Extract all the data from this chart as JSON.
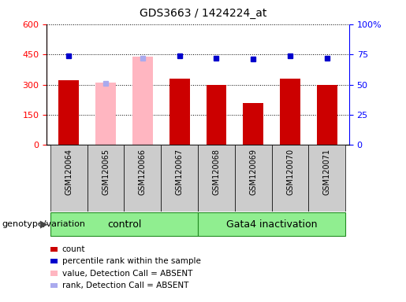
{
  "title": "GDS3663 / 1424224_at",
  "samples": [
    "GSM120064",
    "GSM120065",
    "GSM120066",
    "GSM120067",
    "GSM120068",
    "GSM120069",
    "GSM120070",
    "GSM120071"
  ],
  "count_values": [
    320,
    0,
    0,
    330,
    300,
    210,
    330,
    300
  ],
  "count_absent_values": [
    0,
    310,
    440,
    0,
    0,
    0,
    0,
    0
  ],
  "percentile_values": [
    74,
    0,
    0,
    74,
    72,
    71,
    74,
    72
  ],
  "percentile_absent_values": [
    0,
    51,
    72,
    0,
    0,
    0,
    0,
    0
  ],
  "is_absent": [
    false,
    true,
    true,
    false,
    false,
    false,
    false,
    false
  ],
  "ylim_left": [
    0,
    600
  ],
  "ylim_right": [
    0,
    100
  ],
  "yticks_left": [
    0,
    150,
    300,
    450,
    600
  ],
  "yticks_right": [
    0,
    25,
    50,
    75,
    100
  ],
  "bar_color_red": "#CC0000",
  "bar_color_pink": "#FFB6C1",
  "dot_color_blue": "#0000CC",
  "dot_color_lightblue": "#AAAAEE",
  "sample_box_color": "#CCCCCC",
  "group_color": "#90EE90",
  "group_border_color": "#228B22",
  "legend_items": [
    {
      "color": "#CC0000",
      "label": "count"
    },
    {
      "color": "#0000CC",
      "label": "percentile rank within the sample"
    },
    {
      "color": "#FFB6C1",
      "label": "value, Detection Call = ABSENT"
    },
    {
      "color": "#AAAAEE",
      "label": "rank, Detection Call = ABSENT"
    }
  ]
}
